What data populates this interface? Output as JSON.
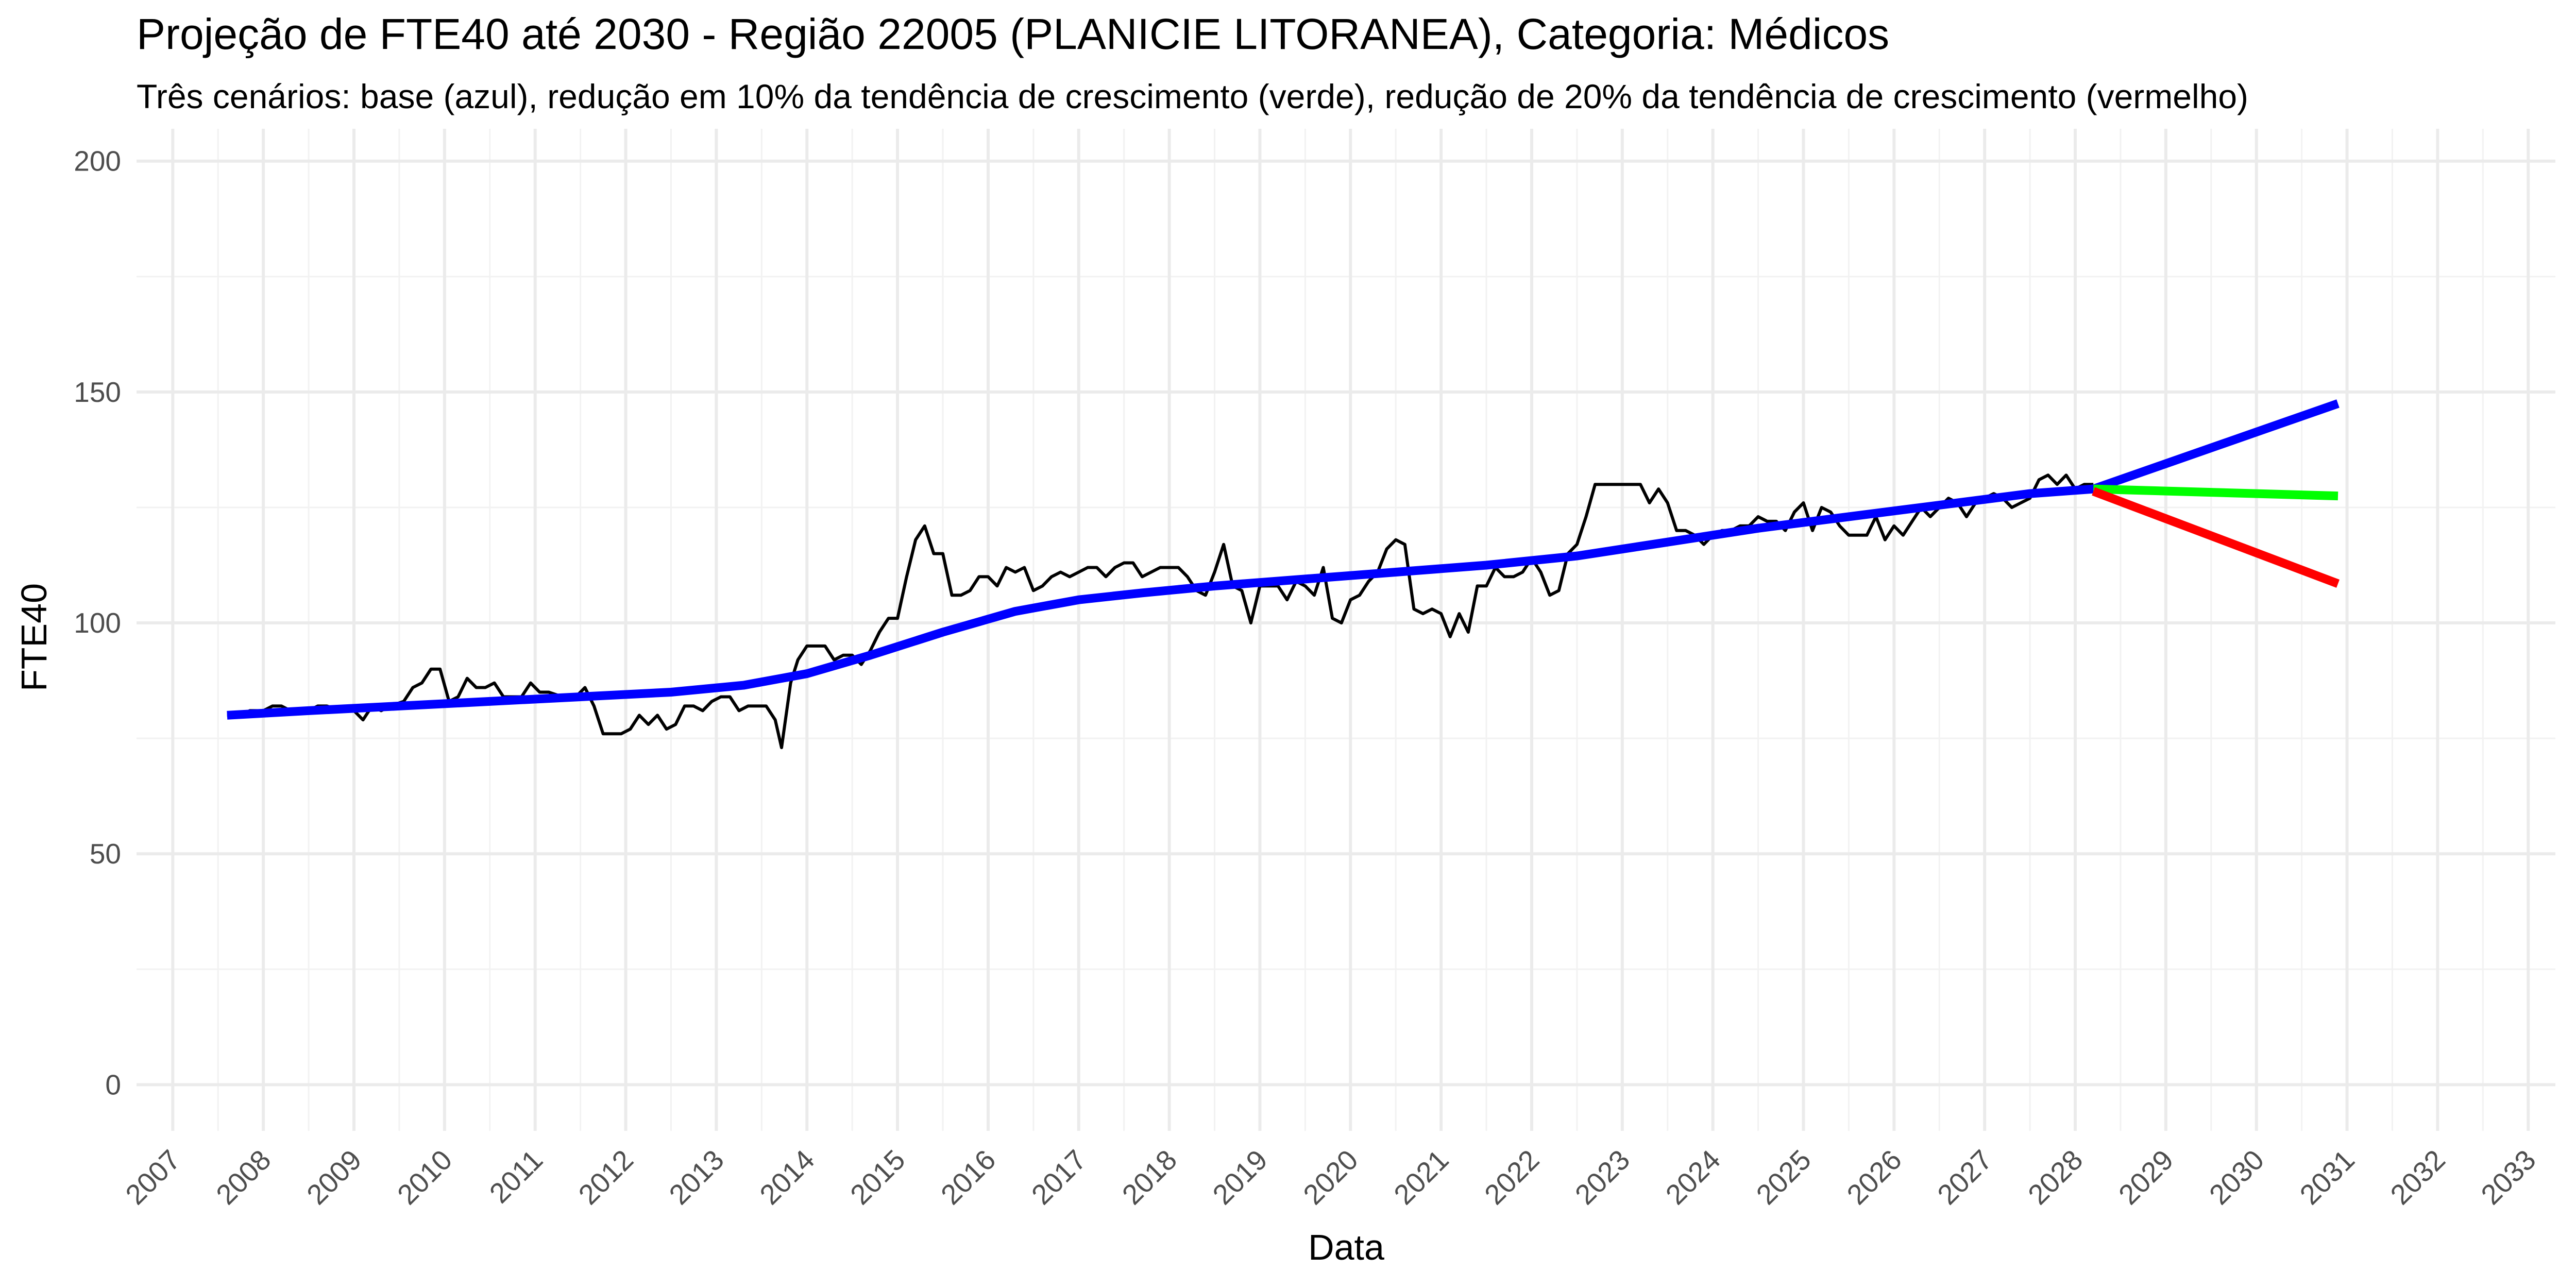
{
  "chart_data": {
    "type": "line",
    "title": "Projeção de FTE40 até 2030 - Região 22005 (PLANICIE LITORANEA), Categoria: Médicos",
    "subtitle": "Três cenários: base (azul), redução em 10% da tendência de crescimento (verde), redução de 20% da tendência de crescimento (vermelho)",
    "xlabel": "Data",
    "ylabel": "FTE40",
    "xlim": [
      2006.6,
      2033.3
    ],
    "ylim": [
      -10,
      207
    ],
    "x_ticks": [
      "2007",
      "2008",
      "2009",
      "2010",
      "2011",
      "2012",
      "2013",
      "2014",
      "2015",
      "2016",
      "2017",
      "2018",
      "2019",
      "2020",
      "2021",
      "2022",
      "2023",
      "2024",
      "2025",
      "2026",
      "2027",
      "2028",
      "2029",
      "2030",
      "2031",
      "2032",
      "2033"
    ],
    "y_ticks": [
      "0",
      "50",
      "100",
      "150",
      "200"
    ],
    "grid": true,
    "legend": "none",
    "series": [
      {
        "color": "#000000",
        "points": [
          [
            2007.6,
            80
          ],
          [
            2007.75,
            80
          ],
          [
            2007.85,
            81
          ],
          [
            2008.0,
            81
          ],
          [
            2008.1,
            82
          ],
          [
            2008.2,
            82
          ],
          [
            2008.3,
            81
          ],
          [
            2008.4,
            81
          ],
          [
            2008.5,
            81
          ],
          [
            2008.6,
            82
          ],
          [
            2008.7,
            82
          ],
          [
            2008.85,
            81
          ],
          [
            2009.0,
            81
          ],
          [
            2009.1,
            79
          ],
          [
            2009.2,
            82
          ],
          [
            2009.3,
            81
          ],
          [
            2009.4,
            82
          ],
          [
            2009.55,
            83
          ],
          [
            2009.65,
            86
          ],
          [
            2009.75,
            87
          ],
          [
            2009.85,
            90
          ],
          [
            2009.95,
            90
          ],
          [
            2010.05,
            83
          ],
          [
            2010.15,
            84
          ],
          [
            2010.25,
            88
          ],
          [
            2010.35,
            86
          ],
          [
            2010.45,
            86
          ],
          [
            2010.55,
            87
          ],
          [
            2010.65,
            84
          ],
          [
            2010.75,
            84
          ],
          [
            2010.85,
            84
          ],
          [
            2010.95,
            87
          ],
          [
            2011.05,
            85
          ],
          [
            2011.15,
            85
          ],
          [
            2011.3,
            84
          ],
          [
            2011.45,
            84
          ],
          [
            2011.55,
            86
          ],
          [
            2011.65,
            82
          ],
          [
            2011.75,
            76
          ],
          [
            2011.85,
            76
          ],
          [
            2011.95,
            76
          ],
          [
            2012.05,
            77
          ],
          [
            2012.15,
            80
          ],
          [
            2012.25,
            78
          ],
          [
            2012.35,
            80
          ],
          [
            2012.45,
            77
          ],
          [
            2012.55,
            78
          ],
          [
            2012.65,
            82
          ],
          [
            2012.75,
            82
          ],
          [
            2012.85,
            81
          ],
          [
            2012.95,
            83
          ],
          [
            2013.05,
            84
          ],
          [
            2013.15,
            84
          ],
          [
            2013.25,
            81
          ],
          [
            2013.35,
            82
          ],
          [
            2013.45,
            82
          ],
          [
            2013.55,
            82
          ],
          [
            2013.65,
            79
          ],
          [
            2013.72,
            73
          ],
          [
            2013.82,
            87
          ],
          [
            2013.9,
            92
          ],
          [
            2014.0,
            95
          ],
          [
            2014.1,
            95
          ],
          [
            2014.2,
            95
          ],
          [
            2014.3,
            92
          ],
          [
            2014.4,
            93
          ],
          [
            2014.5,
            93
          ],
          [
            2014.6,
            91
          ],
          [
            2014.7,
            94
          ],
          [
            2014.8,
            98
          ],
          [
            2014.9,
            101
          ],
          [
            2015.0,
            101
          ],
          [
            2015.1,
            110
          ],
          [
            2015.2,
            118
          ],
          [
            2015.3,
            121
          ],
          [
            2015.4,
            115
          ],
          [
            2015.5,
            115
          ],
          [
            2015.6,
            106
          ],
          [
            2015.7,
            106
          ],
          [
            2015.8,
            107
          ],
          [
            2015.9,
            110
          ],
          [
            2016.0,
            110
          ],
          [
            2016.1,
            108
          ],
          [
            2016.2,
            112
          ],
          [
            2016.3,
            111
          ],
          [
            2016.4,
            112
          ],
          [
            2016.5,
            107
          ],
          [
            2016.6,
            108
          ],
          [
            2016.7,
            110
          ],
          [
            2016.8,
            111
          ],
          [
            2016.9,
            110
          ],
          [
            2017.0,
            111
          ],
          [
            2017.1,
            112
          ],
          [
            2017.2,
            112
          ],
          [
            2017.3,
            110
          ],
          [
            2017.4,
            112
          ],
          [
            2017.5,
            113
          ],
          [
            2017.6,
            113
          ],
          [
            2017.7,
            110
          ],
          [
            2017.8,
            111
          ],
          [
            2017.9,
            112
          ],
          [
            2018.0,
            112
          ],
          [
            2018.1,
            112
          ],
          [
            2018.2,
            110
          ],
          [
            2018.3,
            107
          ],
          [
            2018.4,
            106
          ],
          [
            2018.5,
            111
          ],
          [
            2018.6,
            117
          ],
          [
            2018.7,
            108
          ],
          [
            2018.8,
            107
          ],
          [
            2018.9,
            100
          ],
          [
            2019.0,
            108
          ],
          [
            2019.1,
            108
          ],
          [
            2019.2,
            108
          ],
          [
            2019.3,
            105
          ],
          [
            2019.4,
            109
          ],
          [
            2019.5,
            108
          ],
          [
            2019.6,
            106
          ],
          [
            2019.7,
            112
          ],
          [
            2019.8,
            101
          ],
          [
            2019.9,
            100
          ],
          [
            2020.0,
            105
          ],
          [
            2020.1,
            106
          ],
          [
            2020.2,
            109
          ],
          [
            2020.3,
            111
          ],
          [
            2020.4,
            116
          ],
          [
            2020.5,
            118
          ],
          [
            2020.6,
            117
          ],
          [
            2020.7,
            103
          ],
          [
            2020.8,
            102
          ],
          [
            2020.9,
            103
          ],
          [
            2021.0,
            102
          ],
          [
            2021.1,
            97
          ],
          [
            2021.2,
            102
          ],
          [
            2021.3,
            98
          ],
          [
            2021.4,
            108
          ],
          [
            2021.5,
            108
          ],
          [
            2021.6,
            112
          ],
          [
            2021.7,
            110
          ],
          [
            2021.8,
            110
          ],
          [
            2021.9,
            111
          ],
          [
            2022.0,
            114
          ],
          [
            2022.1,
            111
          ],
          [
            2022.2,
            106
          ],
          [
            2022.3,
            107
          ],
          [
            2022.4,
            115
          ],
          [
            2022.5,
            117
          ],
          [
            2022.6,
            123
          ],
          [
            2022.7,
            130
          ],
          [
            2022.8,
            130
          ],
          [
            2022.9,
            130
          ],
          [
            2023.0,
            130
          ],
          [
            2023.1,
            130
          ],
          [
            2023.2,
            130
          ],
          [
            2023.3,
            126
          ],
          [
            2023.4,
            129
          ],
          [
            2023.5,
            126
          ],
          [
            2023.6,
            120
          ],
          [
            2023.7,
            120
          ],
          [
            2023.8,
            119
          ],
          [
            2023.9,
            117
          ],
          [
            2024.0,
            119
          ],
          [
            2024.1,
            120
          ],
          [
            2024.2,
            120
          ],
          [
            2024.3,
            121
          ],
          [
            2024.4,
            121
          ],
          [
            2024.5,
            123
          ],
          [
            2024.6,
            122
          ],
          [
            2024.7,
            122
          ],
          [
            2024.8,
            120
          ],
          [
            2024.9,
            124
          ],
          [
            2025.0,
            126
          ],
          [
            2025.1,
            120
          ],
          [
            2025.2,
            125
          ],
          [
            2025.3,
            124
          ],
          [
            2025.4,
            121
          ],
          [
            2025.5,
            119
          ],
          [
            2025.6,
            119
          ],
          [
            2025.7,
            119
          ],
          [
            2025.8,
            123
          ],
          [
            2025.9,
            118
          ],
          [
            2026.0,
            121
          ],
          [
            2026.1,
            119
          ],
          [
            2026.2,
            122
          ],
          [
            2026.3,
            125
          ],
          [
            2026.4,
            123
          ],
          [
            2026.5,
            125
          ],
          [
            2026.6,
            127
          ],
          [
            2026.7,
            126
          ],
          [
            2026.8,
            123
          ],
          [
            2026.9,
            126
          ],
          [
            2027.0,
            127
          ],
          [
            2027.1,
            128
          ],
          [
            2027.2,
            127
          ],
          [
            2027.3,
            125
          ],
          [
            2027.4,
            126
          ],
          [
            2027.5,
            127
          ],
          [
            2027.6,
            131
          ],
          [
            2027.7,
            132
          ],
          [
            2027.8,
            130
          ],
          [
            2027.9,
            132
          ],
          [
            2028.0,
            129
          ],
          [
            2028.1,
            130
          ],
          [
            2028.2,
            130
          ]
        ]
      },
      {
        "color": "#0000ff",
        "points": [
          [
            2007.6,
            80
          ],
          [
            2008.5,
            81
          ],
          [
            2009.5,
            82
          ],
          [
            2010.5,
            83
          ],
          [
            2011.5,
            84
          ],
          [
            2012.5,
            85
          ],
          [
            2013.3,
            86.5
          ],
          [
            2014.0,
            89
          ],
          [
            2014.7,
            93
          ],
          [
            2015.5,
            98
          ],
          [
            2016.3,
            102.5
          ],
          [
            2017.0,
            105
          ],
          [
            2017.7,
            106.5
          ],
          [
            2018.5,
            108
          ],
          [
            2019.5,
            109.5
          ],
          [
            2020.5,
            111
          ],
          [
            2021.5,
            112.5
          ],
          [
            2022.5,
            114.5
          ],
          [
            2023.5,
            117.5
          ],
          [
            2024.5,
            120.5
          ],
          [
            2025.5,
            123
          ],
          [
            2026.5,
            125.5
          ],
          [
            2027.5,
            128
          ],
          [
            2028.2,
            129
          ]
        ]
      },
      {
        "color": "#0000ff",
        "points": [
          [
            2028.2,
            129
          ],
          [
            2030.9,
            147.5
          ]
        ]
      },
      {
        "color": "#00ff00",
        "points": [
          [
            2028.2,
            129
          ],
          [
            2030.9,
            127.5
          ]
        ]
      },
      {
        "color": "#ff0000",
        "points": [
          [
            2028.2,
            128.5
          ],
          [
            2030.9,
            108.5
          ]
        ]
      }
    ]
  }
}
